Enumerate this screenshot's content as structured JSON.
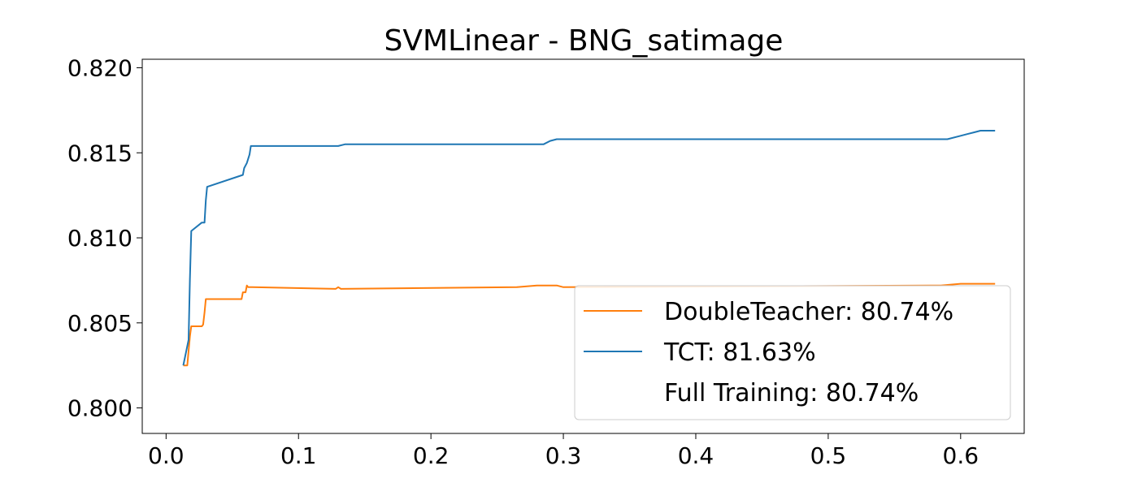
{
  "chart_data": {
    "type": "line",
    "title": "SVMLinear - BNG_satimage",
    "xlabel": "",
    "ylabel": "",
    "xlim": [
      -0.018,
      0.648
    ],
    "ylim": [
      0.7985,
      0.8205
    ],
    "xticks": [
      0.0,
      0.1,
      0.2,
      0.3,
      0.4,
      0.5,
      0.6
    ],
    "xtick_labels": [
      "0.0",
      "0.1",
      "0.2",
      "0.3",
      "0.4",
      "0.5",
      "0.6"
    ],
    "yticks": [
      0.8,
      0.805,
      0.81,
      0.815,
      0.82
    ],
    "ytick_labels": [
      "0.800",
      "0.805",
      "0.810",
      "0.815",
      "0.820"
    ],
    "grid": false,
    "legend_position": "lower-right",
    "series": [
      {
        "name": "DoubleTeacher: 80.74%",
        "color": "#ff7f0e",
        "x": [
          0.013,
          0.016,
          0.018,
          0.019,
          0.025,
          0.027,
          0.028,
          0.029,
          0.03,
          0.057,
          0.058,
          0.06,
          0.061,
          0.062,
          0.065,
          0.128,
          0.13,
          0.132,
          0.265,
          0.28,
          0.295,
          0.3,
          0.585,
          0.6,
          0.61,
          0.62,
          0.626
        ],
        "y": [
          0.8025,
          0.8025,
          0.8042,
          0.8048,
          0.8048,
          0.8048,
          0.8049,
          0.8056,
          0.8064,
          0.8064,
          0.8068,
          0.8068,
          0.8072,
          0.8071,
          0.8071,
          0.807,
          0.8071,
          0.807,
          0.8071,
          0.8072,
          0.8072,
          0.8071,
          0.8072,
          0.8073,
          0.8073,
          0.8073,
          0.8073
        ]
      },
      {
        "name": "TCT: 81.63%",
        "color": "#1f77b4",
        "x": [
          0.013,
          0.017,
          0.018,
          0.019,
          0.027,
          0.029,
          0.03,
          0.031,
          0.058,
          0.059,
          0.061,
          0.063,
          0.064,
          0.13,
          0.135,
          0.285,
          0.29,
          0.295,
          0.3,
          0.59,
          0.6,
          0.605,
          0.61,
          0.615,
          0.626
        ],
        "y": [
          0.8025,
          0.804,
          0.8075,
          0.8104,
          0.8109,
          0.8109,
          0.8122,
          0.813,
          0.8137,
          0.8141,
          0.8144,
          0.8149,
          0.8154,
          0.8154,
          0.8155,
          0.8155,
          0.8157,
          0.8158,
          0.8158,
          0.8158,
          0.816,
          0.8161,
          0.8162,
          0.8163,
          0.8163
        ]
      },
      {
        "name": "Full Training: 80.74%",
        "color": "#ffffff",
        "x": [],
        "y": []
      }
    ]
  }
}
